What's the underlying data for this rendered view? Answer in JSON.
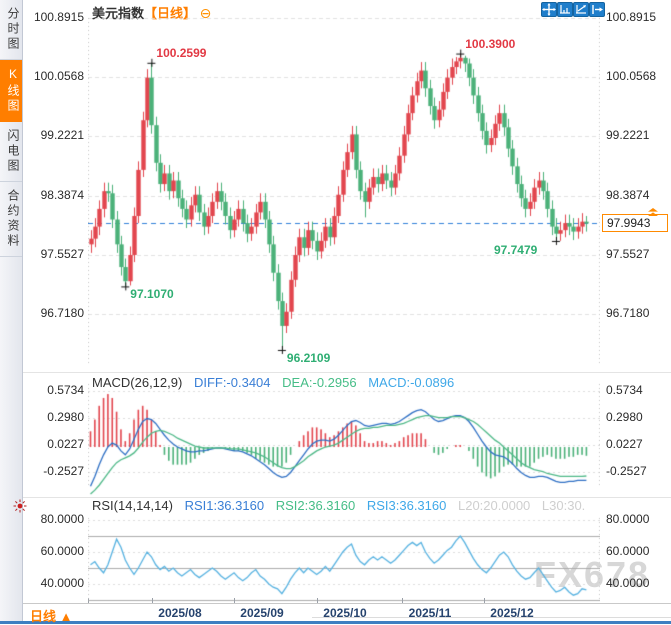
{
  "sidebar": {
    "items": [
      {
        "label": "分时图",
        "active": false
      },
      {
        "label": "K线图",
        "active": true
      },
      {
        "label": "闪电图",
        "active": false
      },
      {
        "label": "合约资料",
        "active": false
      }
    ]
  },
  "header": {
    "title": "美元指数",
    "period_tag": "【日线】",
    "collapse_icon": "⊖"
  },
  "toolbar": {
    "icons": [
      "crosshair-move",
      "fit-horizontal-axis",
      "fit-vertical-axis",
      "pan-right"
    ]
  },
  "price_tag": {
    "value": "97.9943"
  },
  "footer": {
    "period_label": "日线",
    "arrow": "▲"
  },
  "watermark": "FX678",
  "chart_data": [
    {
      "type": "candlestick",
      "title": "美元指数 日线",
      "y_ticks": [
        "100.8915",
        "100.0568",
        "99.2221",
        "98.3874",
        "97.5527",
        "96.7180"
      ],
      "x_ticks": [
        "2025/08",
        "2025/09",
        "2025/10",
        "2025/11",
        "2025/12"
      ],
      "ylim": [
        96.0,
        100.97
      ],
      "current_price": 97.9943,
      "colors": {
        "up": "#e2464e",
        "down": "#4bb179",
        "current_line": "#2f7fd9"
      },
      "annotations": [
        {
          "text": "100.2599",
          "value": 100.2599,
          "index": 14,
          "kind": "high"
        },
        {
          "text": "100.3900",
          "value": 100.39,
          "index": 85,
          "kind": "high"
        },
        {
          "text": "97.1070",
          "value": 97.107,
          "index": 8,
          "kind": "low"
        },
        {
          "text": "96.2109",
          "value": 96.2109,
          "index": 44,
          "kind": "low"
        },
        {
          "text": "97.7479",
          "value": 97.7479,
          "index": 107,
          "kind": "low",
          "align": "left"
        }
      ],
      "candles": [
        [
          97.7,
          97.9,
          97.58,
          97.78
        ],
        [
          97.78,
          98.07,
          97.66,
          97.95
        ],
        [
          97.95,
          98.32,
          97.83,
          98.2
        ],
        [
          98.2,
          98.57,
          98.08,
          98.45
        ],
        [
          98.45,
          98.57,
          98.3,
          98.42
        ],
        [
          98.42,
          98.54,
          97.93,
          98.05
        ],
        [
          98.05,
          98.17,
          97.58,
          97.7
        ],
        [
          97.7,
          97.82,
          97.26,
          97.38
        ],
        [
          97.38,
          97.5,
          97.107,
          97.18
        ],
        [
          97.18,
          97.67,
          97.12,
          97.55
        ],
        [
          97.55,
          98.22,
          97.45,
          98.1
        ],
        [
          98.1,
          98.87,
          98.0,
          98.75
        ],
        [
          98.75,
          99.57,
          98.65,
          99.45
        ],
        [
          99.45,
          100.17,
          99.35,
          100.05
        ],
        [
          100.05,
          100.2599,
          99.26,
          99.38
        ],
        [
          99.38,
          99.5,
          98.73,
          98.85
        ],
        [
          98.85,
          98.97,
          98.43,
          98.55
        ],
        [
          98.55,
          98.82,
          98.45,
          98.7
        ],
        [
          98.7,
          98.82,
          98.33,
          98.45
        ],
        [
          98.45,
          98.72,
          98.35,
          98.6
        ],
        [
          98.6,
          98.72,
          98.23,
          98.35
        ],
        [
          98.35,
          98.47,
          98.08,
          98.2
        ],
        [
          98.2,
          98.32,
          97.93,
          98.05
        ],
        [
          98.05,
          98.37,
          97.95,
          98.25
        ],
        [
          98.25,
          98.52,
          98.15,
          98.4
        ],
        [
          98.4,
          98.52,
          98.03,
          98.15
        ],
        [
          98.15,
          98.27,
          97.83,
          97.95
        ],
        [
          97.95,
          98.22,
          97.85,
          98.1
        ],
        [
          98.1,
          98.42,
          98.0,
          98.3
        ],
        [
          98.3,
          98.57,
          98.2,
          98.45
        ],
        [
          98.45,
          98.57,
          98.18,
          98.3
        ],
        [
          98.3,
          98.42,
          97.98,
          98.1
        ],
        [
          98.1,
          98.22,
          97.78,
          97.9
        ],
        [
          97.9,
          98.17,
          97.8,
          98.05
        ],
        [
          98.05,
          98.32,
          97.95,
          98.2
        ],
        [
          98.2,
          98.32,
          97.88,
          98.0
        ],
        [
          98.0,
          98.12,
          97.73,
          97.85
        ],
        [
          97.85,
          98.07,
          97.75,
          97.95
        ],
        [
          97.95,
          98.27,
          97.85,
          98.15
        ],
        [
          98.15,
          98.42,
          98.05,
          98.3
        ],
        [
          98.3,
          98.42,
          97.93,
          98.05
        ],
        [
          98.05,
          98.17,
          97.58,
          97.7
        ],
        [
          97.7,
          97.82,
          97.18,
          97.3
        ],
        [
          97.3,
          97.42,
          96.78,
          96.9
        ],
        [
          96.9,
          97.02,
          96.2109,
          96.55
        ],
        [
          96.55,
          96.87,
          96.45,
          96.75
        ],
        [
          96.75,
          97.32,
          96.65,
          97.2
        ],
        [
          97.2,
          97.67,
          97.1,
          97.55
        ],
        [
          97.55,
          97.92,
          97.45,
          97.8
        ],
        [
          97.8,
          97.92,
          97.53,
          97.65
        ],
        [
          97.65,
          98.02,
          97.55,
          97.9
        ],
        [
          97.9,
          98.02,
          97.63,
          97.75
        ],
        [
          97.75,
          97.87,
          97.48,
          97.6
        ],
        [
          97.6,
          97.87,
          97.5,
          97.75
        ],
        [
          97.75,
          98.07,
          97.65,
          97.95
        ],
        [
          97.95,
          98.07,
          97.68,
          97.8
        ],
        [
          97.8,
          98.22,
          97.7,
          98.1
        ],
        [
          98.1,
          98.52,
          98.0,
          98.4
        ],
        [
          98.4,
          98.87,
          98.3,
          98.75
        ],
        [
          98.75,
          99.12,
          98.65,
          99.0
        ],
        [
          99.0,
          99.37,
          98.9,
          99.25
        ],
        [
          99.25,
          99.37,
          98.63,
          98.75
        ],
        [
          98.75,
          98.87,
          98.33,
          98.45
        ],
        [
          98.45,
          98.57,
          98.08,
          98.3
        ],
        [
          98.3,
          98.62,
          98.2,
          98.5
        ],
        [
          98.5,
          98.77,
          98.4,
          98.65
        ],
        [
          98.65,
          98.77,
          98.43,
          98.55
        ],
        [
          98.55,
          98.82,
          98.45,
          98.7
        ],
        [
          98.7,
          98.82,
          98.48,
          98.6
        ],
        [
          98.6,
          98.72,
          98.38,
          98.5
        ],
        [
          98.5,
          98.82,
          98.4,
          98.7
        ],
        [
          98.7,
          99.07,
          98.6,
          98.95
        ],
        [
          98.95,
          99.37,
          98.85,
          99.25
        ],
        [
          99.25,
          99.67,
          99.15,
          99.55
        ],
        [
          99.55,
          99.92,
          99.45,
          99.8
        ],
        [
          99.8,
          100.12,
          99.7,
          100.0
        ],
        [
          100.0,
          100.27,
          99.9,
          100.15
        ],
        [
          100.15,
          100.27,
          99.78,
          99.9
        ],
        [
          99.9,
          100.02,
          99.53,
          99.65
        ],
        [
          99.65,
          99.77,
          99.33,
          99.45
        ],
        [
          99.45,
          99.72,
          99.35,
          99.6
        ],
        [
          99.6,
          99.97,
          99.5,
          99.85
        ],
        [
          99.85,
          100.17,
          99.75,
          100.05
        ],
        [
          100.05,
          100.32,
          99.95,
          100.2
        ],
        [
          100.2,
          100.34,
          100.1,
          100.28
        ],
        [
          100.28,
          100.39,
          100.18,
          100.33
        ],
        [
          100.33,
          100.36,
          100.13,
          100.25
        ],
        [
          100.25,
          100.32,
          99.93,
          100.05
        ],
        [
          100.05,
          100.17,
          99.68,
          99.8
        ],
        [
          99.8,
          99.92,
          99.43,
          99.55
        ],
        [
          99.55,
          99.67,
          99.18,
          99.3
        ],
        [
          99.3,
          99.42,
          98.98,
          99.1
        ],
        [
          99.1,
          99.32,
          99.0,
          99.2
        ],
        [
          99.2,
          99.52,
          99.1,
          99.4
        ],
        [
          99.4,
          99.67,
          99.3,
          99.55
        ],
        [
          99.55,
          99.67,
          99.23,
          99.35
        ],
        [
          99.35,
          99.47,
          98.93,
          99.05
        ],
        [
          99.05,
          99.17,
          98.68,
          98.8
        ],
        [
          98.8,
          98.92,
          98.43,
          98.55
        ],
        [
          98.55,
          98.67,
          98.23,
          98.35
        ],
        [
          98.35,
          98.47,
          98.08,
          98.2
        ],
        [
          98.2,
          98.42,
          98.1,
          98.3
        ],
        [
          98.3,
          98.62,
          98.2,
          98.5
        ],
        [
          98.5,
          98.72,
          98.4,
          98.6
        ],
        [
          98.6,
          98.72,
          98.33,
          98.45
        ],
        [
          98.45,
          98.57,
          98.08,
          98.2
        ],
        [
          98.2,
          98.32,
          97.83,
          97.95
        ],
        [
          97.95,
          98.07,
          97.7479,
          97.85
        ],
        [
          97.85,
          98.02,
          97.75,
          97.9
        ],
        [
          97.9,
          98.12,
          97.8,
          98.0
        ],
        [
          98.0,
          98.12,
          97.83,
          97.95
        ],
        [
          97.95,
          98.07,
          97.76,
          97.88
        ],
        [
          97.88,
          98.07,
          97.78,
          97.95
        ],
        [
          97.95,
          98.14,
          97.85,
          98.02
        ],
        [
          98.02,
          98.1,
          97.88,
          97.9943
        ]
      ]
    },
    {
      "type": "macd",
      "label": "MACD(26,12,9)",
      "diff_label": "DIFF:-0.3404",
      "dea_label": "DEA:-0.2956",
      "macd_label": "MACD:-0.0896",
      "y_ticks": [
        "0.5734",
        "0.2980",
        "0.0227",
        "-0.2527"
      ],
      "colors": {
        "diff": "#2e6fc4",
        "dea": "#4db887",
        "hist_up": "#e2464e",
        "hist_down": "#4bb179"
      },
      "hist": [
        0.16,
        0.28,
        0.42,
        0.5,
        0.54,
        0.5,
        0.36,
        0.18,
        0.06,
        0.14,
        0.28,
        0.38,
        0.42,
        0.38,
        0.28,
        0.16,
        0.02,
        -0.08,
        -0.14,
        -0.18,
        -0.18,
        -0.18,
        -0.18,
        -0.16,
        -0.12,
        -0.08,
        -0.06,
        -0.04,
        -0.02,
        0.0,
        0.0,
        -0.02,
        -0.02,
        -0.04,
        -0.04,
        -0.04,
        -0.06,
        -0.08,
        -0.12,
        -0.14,
        -0.16,
        -0.18,
        -0.2,
        -0.2,
        -0.2,
        -0.16,
        -0.08,
        0.0,
        0.06,
        0.12,
        0.16,
        0.2,
        0.2,
        0.18,
        0.14,
        0.1,
        0.12,
        0.16,
        0.2,
        0.24,
        0.26,
        0.22,
        0.14,
        0.06,
        0.04,
        0.04,
        0.06,
        0.06,
        0.04,
        0.02,
        0.04,
        0.06,
        0.1,
        0.12,
        0.14,
        0.14,
        0.14,
        0.08,
        0.0,
        -0.06,
        -0.08,
        -0.06,
        -0.02,
        0.0,
        0.02,
        0.02,
        0.0,
        -0.04,
        -0.12,
        -0.2,
        -0.26,
        -0.3,
        -0.32,
        -0.3,
        -0.26,
        -0.2,
        -0.18,
        -0.18,
        -0.2,
        -0.2,
        -0.2,
        -0.2,
        -0.16,
        -0.12,
        -0.1,
        -0.08,
        -0.1,
        -0.12,
        -0.12,
        -0.12,
        -0.1,
        -0.1,
        -0.08,
        -0.08,
        -0.0896
      ],
      "diff": [
        -0.4,
        -0.3,
        -0.18,
        -0.08,
        0.0,
        0.04,
        0.02,
        -0.04,
        -0.08,
        -0.02,
        0.08,
        0.18,
        0.26,
        0.29,
        0.28,
        0.24,
        0.18,
        0.12,
        0.07,
        0.03,
        0.0,
        -0.02,
        -0.04,
        -0.05,
        -0.05,
        -0.04,
        -0.04,
        -0.03,
        -0.02,
        -0.01,
        -0.01,
        -0.02,
        -0.03,
        -0.04,
        -0.04,
        -0.05,
        -0.07,
        -0.09,
        -0.12,
        -0.15,
        -0.18,
        -0.22,
        -0.26,
        -0.29,
        -0.31,
        -0.3,
        -0.26,
        -0.2,
        -0.14,
        -0.08,
        -0.02,
        0.03,
        0.06,
        0.07,
        0.07,
        0.06,
        0.08,
        0.12,
        0.17,
        0.22,
        0.26,
        0.27,
        0.25,
        0.22,
        0.21,
        0.22,
        0.23,
        0.24,
        0.24,
        0.23,
        0.24,
        0.26,
        0.29,
        0.32,
        0.35,
        0.37,
        0.38,
        0.36,
        0.32,
        0.28,
        0.26,
        0.27,
        0.29,
        0.31,
        0.32,
        0.32,
        0.3,
        0.26,
        0.2,
        0.13,
        0.06,
        0.0,
        -0.05,
        -0.08,
        -0.09,
        -0.1,
        -0.13,
        -0.17,
        -0.22,
        -0.26,
        -0.29,
        -0.31,
        -0.31,
        -0.3,
        -0.3,
        -0.31,
        -0.33,
        -0.35,
        -0.36,
        -0.36,
        -0.35,
        -0.35,
        -0.34,
        -0.34,
        -0.3404
      ],
      "dea": [
        -0.48,
        -0.44,
        -0.39,
        -0.33,
        -0.27,
        -0.21,
        -0.16,
        -0.13,
        -0.11,
        -0.09,
        -0.06,
        -0.01,
        0.05,
        0.1,
        0.14,
        0.16,
        0.17,
        0.16,
        0.14,
        0.12,
        0.09,
        0.07,
        0.05,
        0.03,
        0.01,
        0.0,
        -0.01,
        -0.01,
        -0.01,
        -0.01,
        -0.01,
        -0.01,
        -0.02,
        -0.02,
        -0.02,
        -0.03,
        -0.04,
        -0.05,
        -0.06,
        -0.08,
        -0.1,
        -0.13,
        -0.16,
        -0.19,
        -0.21,
        -0.22,
        -0.22,
        -0.2,
        -0.17,
        -0.14,
        -0.1,
        -0.07,
        -0.04,
        -0.02,
        0.0,
        0.01,
        0.02,
        0.04,
        0.07,
        0.1,
        0.13,
        0.16,
        0.18,
        0.19,
        0.19,
        0.2,
        0.2,
        0.21,
        0.22,
        0.22,
        0.22,
        0.23,
        0.24,
        0.26,
        0.28,
        0.3,
        0.31,
        0.32,
        0.32,
        0.31,
        0.3,
        0.3,
        0.3,
        0.31,
        0.31,
        0.31,
        0.3,
        0.28,
        0.26,
        0.23,
        0.19,
        0.15,
        0.11,
        0.07,
        0.04,
        0.0,
        -0.04,
        -0.08,
        -0.12,
        -0.16,
        -0.19,
        -0.21,
        -0.23,
        -0.24,
        -0.25,
        -0.27,
        -0.28,
        -0.29,
        -0.3,
        -0.3,
        -0.3,
        -0.3,
        -0.3,
        -0.3,
        -0.2956
      ]
    },
    {
      "type": "rsi",
      "label": "RSI(14,14,14)",
      "rsi1_label": "RSI1:36.3160",
      "rsi2_label": "RSI2:36.3160",
      "rsi3_label": "RSI3:36.3160",
      "l20_label": "L20:20.0000",
      "l30_label": "L30:30.",
      "y_ticks": [
        "80.0000",
        "60.0000",
        "40.0000"
      ],
      "levels": [
        70,
        50,
        30
      ],
      "color": "#55b1e0",
      "values": [
        52,
        54,
        50,
        47,
        52,
        60,
        68,
        63,
        55,
        50,
        46,
        50,
        55,
        60,
        57,
        52,
        49,
        51,
        48,
        50,
        47,
        45,
        47,
        49,
        46,
        44,
        46,
        48,
        50,
        48,
        45,
        43,
        45,
        47,
        44,
        42,
        44,
        47,
        49,
        45,
        43,
        40,
        38,
        37,
        34,
        38,
        43,
        47,
        50,
        47,
        50,
        48,
        46,
        48,
        51,
        48,
        52,
        56,
        60,
        63,
        65,
        58,
        54,
        52,
        55,
        57,
        55,
        57,
        55,
        53,
        55,
        58,
        61,
        64,
        66,
        64,
        66,
        60,
        56,
        53,
        55,
        58,
        61,
        63,
        67,
        70,
        66,
        61,
        56,
        52,
        49,
        47,
        50,
        54,
        58,
        60,
        57,
        52,
        48,
        45,
        43,
        44,
        47,
        50,
        46,
        42,
        38,
        35,
        36,
        38,
        35,
        33,
        34,
        37,
        36.316
      ]
    }
  ]
}
